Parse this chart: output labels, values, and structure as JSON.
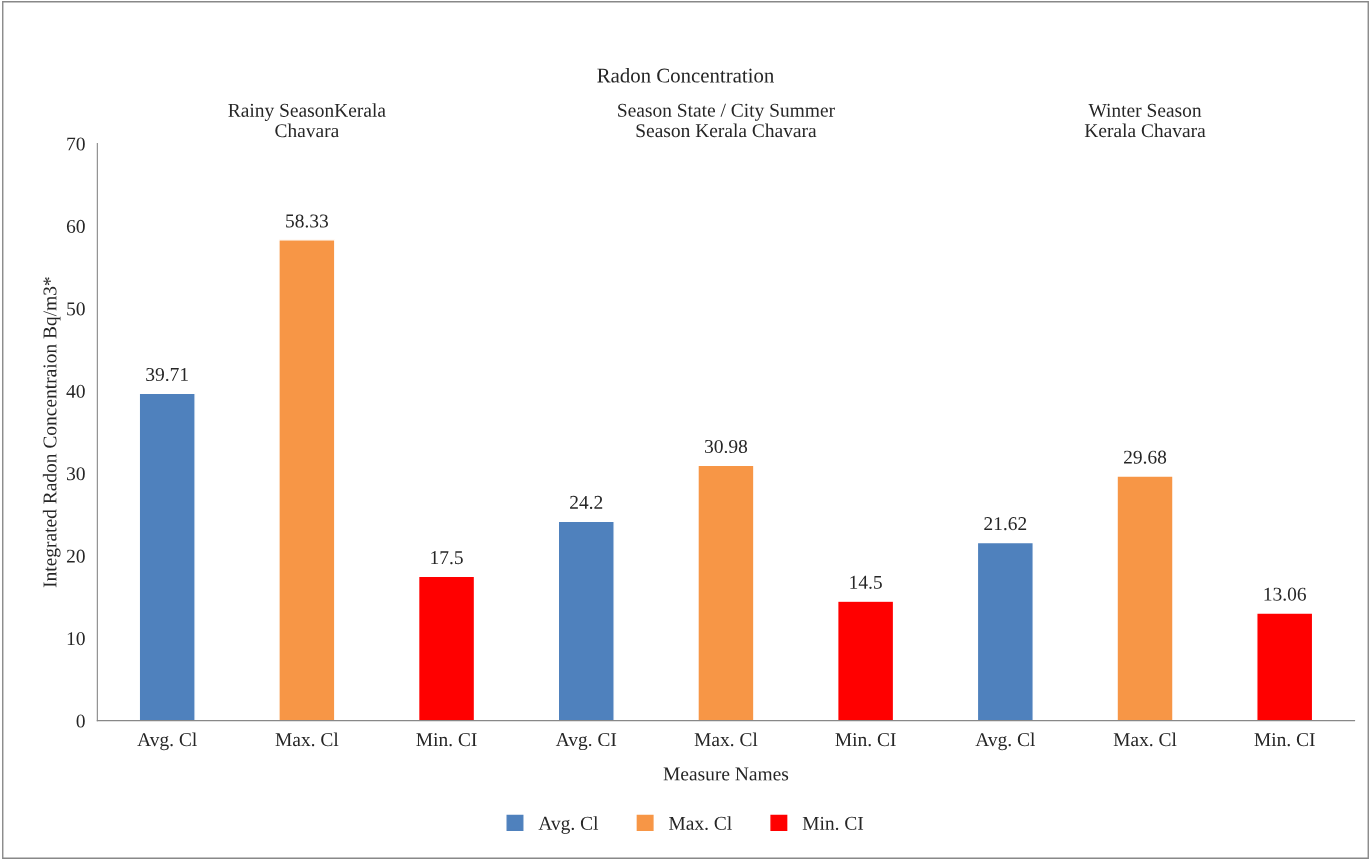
{
  "chart_data": {
    "type": "bar",
    "title": "Radon Concentration",
    "categories": [
      "Avg. Cl",
      "Max. Cl",
      "Min. CI",
      "Avg. CI",
      "Max. Cl",
      "Min. CI",
      "Avg. Cl",
      "Max. Cl",
      "Min. CI"
    ],
    "series": [
      {
        "name": "Avg. Cl",
        "color": "#4f81bd",
        "values": [
          39.71,
          null,
          null,
          24.2,
          null,
          null,
          21.62,
          null,
          null
        ]
      },
      {
        "name": "Max. Cl",
        "color": "#f79646",
        "values": [
          null,
          58.33,
          null,
          null,
          30.98,
          null,
          null,
          29.68,
          null
        ]
      },
      {
        "name": "Min. CI",
        "color": "#ff0000",
        "values": [
          null,
          null,
          17.5,
          null,
          null,
          14.5,
          null,
          null,
          13.06
        ]
      }
    ],
    "xlabel": "Measure Names",
    "ylabel": "Integrated Radon Concentraion Bq/m3*",
    "annotations": [
      "Rainy SeasonKerala\nChavara",
      "Season State / City Summer\nSeason Kerala Chavara",
      "Winter Season\nKerala Chavara"
    ],
    "ylim": [
      0,
      70
    ],
    "yticks": [
      0,
      10,
      20,
      30,
      40,
      50,
      60,
      70
    ],
    "data_labels": true,
    "legend": "bottom",
    "grid": false
  }
}
